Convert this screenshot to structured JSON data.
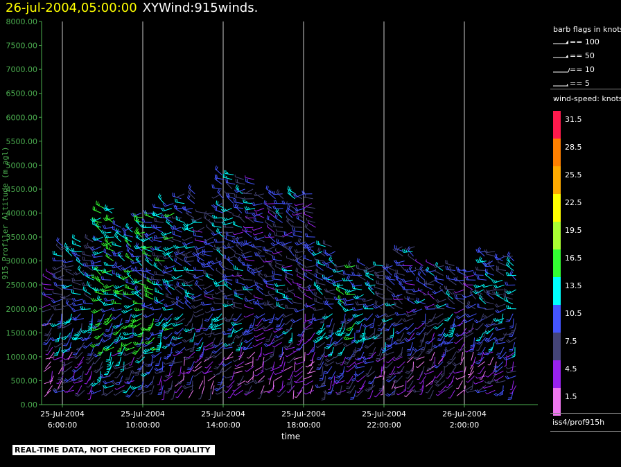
{
  "header": {
    "timestamp": "26-jul-2004,05:00:00",
    "plot_name": "XYWind:915winds."
  },
  "legend": {
    "barb_title": "barb flags in knots",
    "barb_items": [
      "== 100",
      "== 50",
      "== 10",
      "== 5"
    ],
    "scale_title": "wind-speed: knots",
    "scale": [
      {
        "label": "31.5",
        "color": "#ff1a4d"
      },
      {
        "label": "28.5",
        "color": "#ff8000"
      },
      {
        "label": "25.5",
        "color": "#ffaa00"
      },
      {
        "label": "22.5",
        "color": "#ffff00"
      },
      {
        "label": "19.5",
        "color": "#aaff33"
      },
      {
        "label": "16.5",
        "color": "#33ff33"
      },
      {
        "label": "13.5",
        "color": "#00ffff"
      },
      {
        "label": "10.5",
        "color": "#4455ff"
      },
      {
        "label": "7.5",
        "color": "#444477"
      },
      {
        "label": "4.5",
        "color": "#9922ee"
      },
      {
        "label": "1.5",
        "color": "#ee77ee"
      }
    ]
  },
  "station": "iss4/prof915h",
  "footer_note": "REAL-TIME DATA, NOT CHECKED FOR QUALITY",
  "chart_data": {
    "type": "scatter",
    "title": "XYWind:915winds.",
    "xlabel": "time",
    "ylabel": "915 Profiler Altitude (m agl)",
    "ylim": [
      0,
      8000
    ],
    "yticks": [
      "0.00",
      "500.00",
      "1000.00",
      "1500.00",
      "2000.00",
      "2500.00",
      "3000.00",
      "3500.00",
      "4000.00",
      "4500.00",
      "5000.00",
      "5500.00",
      "6000.00",
      "6500.00",
      "7000.00",
      "7500.00",
      "8000.00"
    ],
    "xticks": [
      {
        "date": "25-Jul-2004",
        "time": "6:00:00"
      },
      {
        "date": "25-Jul-2004",
        "time": "10:00:00"
      },
      {
        "date": "25-Jul-2004",
        "time": "14:00:00"
      },
      {
        "date": "25-Jul-2004",
        "time": "18:00:00"
      },
      {
        "date": "25-Jul-2004",
        "time": "22:00:00"
      },
      {
        "date": "26-Jul-2004",
        "time": "2:00:00"
      }
    ],
    "grid": "vertical",
    "barb_profiles": [
      {
        "time": "25-Jul-2004 5:00",
        "top": 2700,
        "speed": 6
      },
      {
        "time": "25-Jul-2004 6:00",
        "top": 3300,
        "speed": 10
      },
      {
        "time": "25-Jul-2004 7:00",
        "top": 3400,
        "speed": 11
      },
      {
        "time": "25-Jul-2004 8:00",
        "top": 4100,
        "speed": 14
      },
      {
        "time": "25-Jul-2004 9:00",
        "top": 3700,
        "speed": 13
      },
      {
        "time": "25-Jul-2004 10:00",
        "top": 4000,
        "speed": 14
      },
      {
        "time": "25-Jul-2004 11:00",
        "top": 4200,
        "speed": 12
      },
      {
        "time": "25-Jul-2004 12:00",
        "top": 4400,
        "speed": 10
      },
      {
        "time": "25-Jul-2004 13:00",
        "top": 4000,
        "speed": 9
      },
      {
        "time": "25-Jul-2004 14:00",
        "top": 4800,
        "speed": 10
      },
      {
        "time": "25-Jul-2004 15:00",
        "top": 4700,
        "speed": 9
      },
      {
        "time": "25-Jul-2004 16:00",
        "top": 4400,
        "speed": 8
      },
      {
        "time": "25-Jul-2004 17:00",
        "top": 4400,
        "speed": 9
      },
      {
        "time": "25-Jul-2004 18:00",
        "top": 4400,
        "speed": 8
      },
      {
        "time": "25-Jul-2004 19:00",
        "top": 3300,
        "speed": 11
      },
      {
        "time": "25-Jul-2004 20:00",
        "top": 2900,
        "speed": 12
      },
      {
        "time": "25-Jul-2004 21:00",
        "top": 2900,
        "speed": 11
      },
      {
        "time": "25-Jul-2004 22:00",
        "top": 2900,
        "speed": 10
      },
      {
        "time": "25-Jul-2004 23:00",
        "top": 3300,
        "speed": 9
      },
      {
        "time": "26-Jul-2004 0:00",
        "top": 2900,
        "speed": 9
      },
      {
        "time": "26-Jul-2004 1:00",
        "top": 2900,
        "speed": 10
      },
      {
        "time": "26-Jul-2004 2:00",
        "top": 2800,
        "speed": 8
      },
      {
        "time": "26-Jul-2004 3:00",
        "top": 3200,
        "speed": 10
      },
      {
        "time": "26-Jul-2004 4:00",
        "top": 3100,
        "speed": 11
      }
    ]
  }
}
